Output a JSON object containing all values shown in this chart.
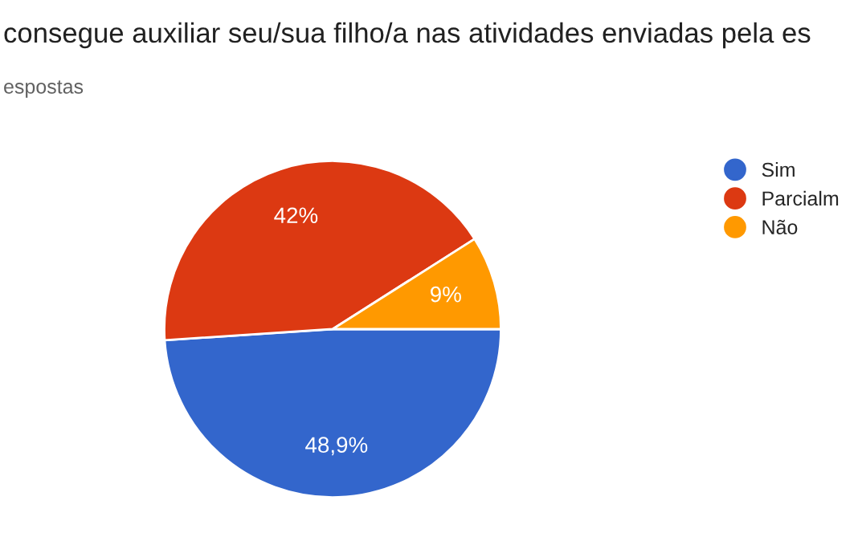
{
  "chart_data": {
    "type": "pie",
    "title": "consegue auxiliar seu/sua filho/a nas atividades enviadas pela es",
    "subtitle": "espostas",
    "categories": [
      "Sim",
      "Parcialm",
      "Não"
    ],
    "values": [
      48.9,
      42,
      9
    ],
    "value_labels": [
      "48,9%",
      "42%",
      "9%"
    ],
    "colors": [
      "#3366cc",
      "#dc3912",
      "#ff9900"
    ],
    "legend": "right"
  }
}
